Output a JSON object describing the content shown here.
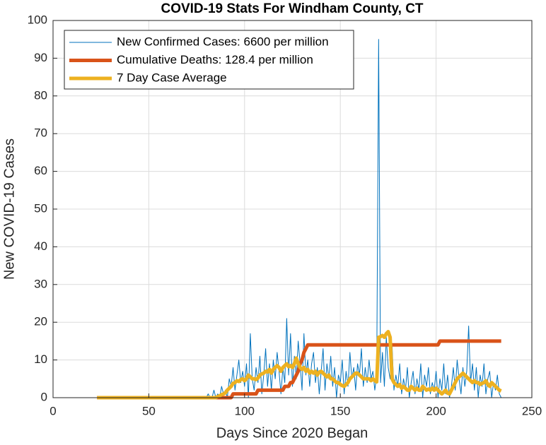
{
  "chart_data": {
    "type": "line",
    "title": "COVID-19 Stats For Windham County, CT",
    "xlabel": "Days Since 2020 Began",
    "ylabel": "New COVID-19 Cases",
    "xlim": [
      0,
      250
    ],
    "xticks": [
      0,
      50,
      100,
      150,
      200,
      250
    ],
    "ylim": [
      0,
      100
    ],
    "yticks": [
      0,
      10,
      20,
      30,
      40,
      50,
      60,
      70,
      80,
      90,
      100
    ],
    "grid": true,
    "legend": "upper left",
    "x": [
      23,
      24,
      25,
      26,
      27,
      28,
      29,
      30,
      31,
      32,
      33,
      34,
      35,
      36,
      37,
      38,
      39,
      40,
      41,
      42,
      43,
      44,
      45,
      46,
      47,
      48,
      49,
      50,
      51,
      52,
      53,
      54,
      55,
      56,
      57,
      58,
      59,
      60,
      61,
      62,
      63,
      64,
      65,
      66,
      67,
      68,
      69,
      70,
      71,
      72,
      73,
      74,
      75,
      76,
      77,
      78,
      79,
      80,
      81,
      82,
      83,
      84,
      85,
      86,
      87,
      88,
      89,
      90,
      91,
      92,
      93,
      94,
      95,
      96,
      97,
      98,
      99,
      100,
      101,
      102,
      103,
      104,
      105,
      106,
      107,
      108,
      109,
      110,
      111,
      112,
      113,
      114,
      115,
      116,
      117,
      118,
      119,
      120,
      121,
      122,
      123,
      124,
      125,
      126,
      127,
      128,
      129,
      130,
      131,
      132,
      133,
      134,
      135,
      136,
      137,
      138,
      139,
      140,
      141,
      142,
      143,
      144,
      145,
      146,
      147,
      148,
      149,
      150,
      151,
      152,
      153,
      154,
      155,
      156,
      157,
      158,
      159,
      160,
      161,
      162,
      163,
      164,
      165,
      166,
      167,
      168,
      169,
      170,
      171,
      172,
      173,
      174,
      175,
      176,
      177,
      178,
      179,
      180,
      181,
      182,
      183,
      184,
      185,
      186,
      187,
      188,
      189,
      190,
      191,
      192,
      193,
      194,
      195,
      196,
      197,
      198,
      199,
      200,
      201,
      202,
      203,
      204,
      205,
      206,
      207,
      208,
      209,
      210,
      211,
      212,
      213,
      214,
      215,
      216,
      217,
      218,
      219,
      220,
      221,
      222,
      223,
      224,
      225,
      226,
      227,
      228,
      229,
      230,
      231,
      232,
      233,
      234
    ],
    "series": [
      {
        "name": "New Confirmed Cases: 6600 per million",
        "color": "#0072BD",
        "width": 1,
        "values": [
          0,
          0,
          0,
          0,
          0,
          0,
          0,
          0,
          0,
          0,
          0,
          0,
          0,
          0,
          0,
          0,
          0,
          0,
          0,
          0,
          0,
          0,
          0,
          0,
          0,
          0,
          0,
          0,
          0,
          0,
          0,
          0,
          0,
          0,
          0,
          0,
          0,
          0,
          0,
          0,
          0,
          0,
          0,
          0,
          0,
          0,
          0,
          0,
          0,
          0,
          0,
          0,
          0,
          0,
          0,
          0,
          0,
          0,
          1,
          0,
          0,
          2,
          0,
          1,
          0,
          3,
          1,
          2,
          0,
          5,
          3,
          8,
          2,
          6,
          10,
          4,
          7,
          3,
          9,
          0,
          17,
          5,
          2,
          8,
          4,
          11,
          1,
          6,
          13,
          3,
          9,
          2,
          10,
          5,
          12,
          7,
          1,
          8,
          4,
          21,
          6,
          17,
          3,
          11,
          5,
          15,
          9,
          2,
          17,
          6,
          10,
          3,
          9,
          12,
          4,
          8,
          1,
          7,
          13,
          2,
          9,
          5,
          11,
          3,
          8,
          0,
          6,
          4,
          10,
          1,
          7,
          3,
          12,
          5,
          8,
          2,
          9,
          6,
          13,
          3,
          8,
          4,
          10,
          5,
          7,
          2,
          6,
          95,
          4,
          12,
          3,
          16,
          8,
          5,
          14,
          2,
          6,
          3,
          9,
          1,
          5,
          2,
          8,
          0,
          4,
          7,
          1,
          5,
          2,
          9,
          0,
          6,
          3,
          8,
          1,
          4,
          2,
          7,
          0,
          5,
          2,
          9,
          1,
          6,
          0,
          3,
          8,
          2,
          10,
          5,
          1,
          8,
          3,
          7,
          19,
          4,
          9,
          2,
          8,
          0,
          6,
          3,
          9,
          1,
          5,
          7,
          0,
          4,
          2,
          6,
          1,
          0
        ]
      },
      {
        "name": "Cumulative Deaths: 128.4 per million",
        "color": "#D95319",
        "width": 5,
        "values": [
          0,
          0,
          0,
          0,
          0,
          0,
          0,
          0,
          0,
          0,
          0,
          0,
          0,
          0,
          0,
          0,
          0,
          0,
          0,
          0,
          0,
          0,
          0,
          0,
          0,
          0,
          0,
          0,
          0,
          0,
          0,
          0,
          0,
          0,
          0,
          0,
          0,
          0,
          0,
          0,
          0,
          0,
          0,
          0,
          0,
          0,
          0,
          0,
          0,
          0,
          0,
          0,
          0,
          0,
          0,
          0,
          0,
          0,
          0,
          0,
          0,
          0,
          0,
          0,
          0,
          0,
          0,
          0,
          0,
          0,
          0,
          1,
          1,
          1,
          1,
          1,
          1,
          1,
          1,
          1,
          1,
          1,
          1,
          1,
          2,
          2,
          2,
          2,
          2,
          2,
          2,
          2,
          2,
          2,
          2,
          2,
          2,
          2,
          3,
          3,
          3,
          4,
          4,
          5,
          6,
          7,
          9,
          10,
          12,
          13,
          14,
          14,
          14,
          14,
          14,
          14,
          14,
          14,
          14,
          14,
          14,
          14,
          14,
          14,
          14,
          14,
          14,
          14,
          14,
          14,
          14,
          14,
          14,
          14,
          14,
          14,
          14,
          14,
          14,
          14,
          14,
          14,
          14,
          14,
          14,
          14,
          14,
          14,
          14,
          14,
          14,
          14,
          14,
          14,
          14,
          14,
          14,
          14,
          14,
          14,
          14,
          14,
          14,
          14,
          14,
          14,
          14,
          14,
          14,
          14,
          14,
          14,
          14,
          14,
          14,
          14,
          14,
          14,
          14,
          15,
          15,
          15,
          15,
          15,
          15,
          15,
          15,
          15,
          15,
          15,
          15,
          15,
          15,
          15,
          15,
          15,
          15,
          15,
          15,
          15,
          15,
          15,
          15,
          15,
          15,
          15,
          15,
          15,
          15,
          15,
          15,
          15
        ]
      },
      {
        "name": "7 Day Case Average",
        "color": "#EDB120",
        "width": 5,
        "values": [
          0,
          0,
          0,
          0,
          0,
          0,
          0,
          0,
          0,
          0,
          0,
          0,
          0,
          0,
          0,
          0,
          0,
          0,
          0,
          0,
          0,
          0,
          0,
          0,
          0,
          0,
          0,
          0,
          0,
          0,
          0,
          0,
          0,
          0,
          0,
          0,
          0,
          0,
          0,
          0,
          0,
          0,
          0,
          0,
          0,
          0,
          0,
          0,
          0,
          0,
          0,
          0,
          0,
          0,
          0,
          0,
          0,
          0,
          0,
          0,
          0,
          0,
          0,
          0.3,
          0.5,
          0.8,
          1,
          1.3,
          2,
          2.5,
          3,
          3.8,
          4,
          4.5,
          4.3,
          4.8,
          5,
          4.5,
          5,
          6,
          5.5,
          5,
          5,
          4.8,
          5.2,
          6,
          6.3,
          6.5,
          7,
          6.8,
          7.5,
          6.5,
          7.5,
          8,
          8.5,
          8,
          7,
          8,
          8.5,
          9,
          8.2,
          8.5,
          8,
          9,
          10.5,
          9,
          8,
          7.5,
          8,
          7,
          7.5,
          6.5,
          7,
          6.5,
          7,
          6,
          6.8,
          7,
          6.5,
          6,
          5.5,
          6,
          5,
          5,
          4.5,
          4,
          4,
          3.5,
          3.2,
          3,
          3.5,
          4,
          5,
          5.5,
          6,
          6.5,
          6.5,
          6,
          5.5,
          5,
          5,
          5,
          5,
          4.5,
          5,
          4.5,
          4.2,
          16,
          16.2,
          16.5,
          16,
          17,
          17.5,
          16,
          5,
          4,
          3.5,
          3,
          3.5,
          2.5,
          3,
          2.5,
          2,
          2,
          3,
          2.5,
          2,
          2.5,
          2,
          2,
          3,
          2.5,
          2,
          2.3,
          2,
          2.5,
          2,
          2.5,
          2,
          1.5,
          1,
          1.5,
          2,
          1.2,
          1,
          2,
          3,
          4,
          5,
          5.5,
          6,
          6.5,
          6,
          5.5,
          5,
          4.5,
          4,
          4.5,
          4,
          4,
          3.5,
          3.8,
          4,
          4.5,
          3.5,
          3,
          4,
          3.5,
          3,
          2.5,
          2,
          1.8
        ]
      }
    ]
  }
}
